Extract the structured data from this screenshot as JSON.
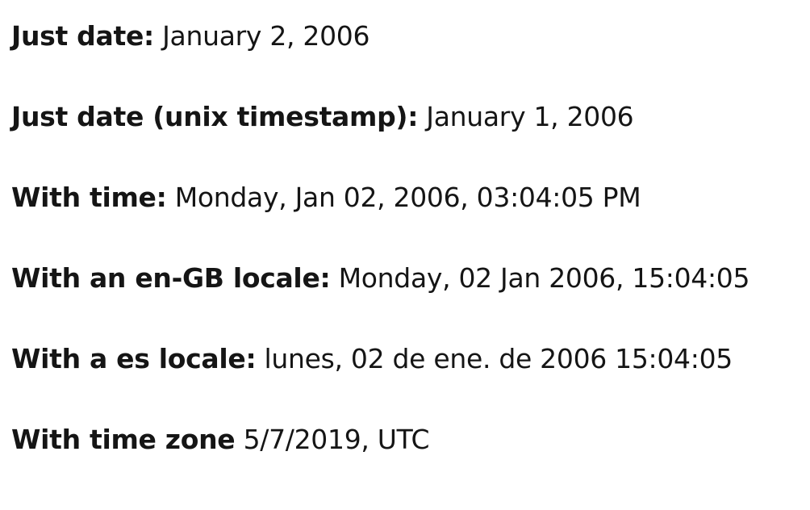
{
  "rows": [
    {
      "label": "Just date:",
      "value": "January 2, 2006"
    },
    {
      "label": "Just date (unix timestamp):",
      "value": "January 1, 2006"
    },
    {
      "label": "With time:",
      "value": "Monday, Jan 02, 2006, 03:04:05 PM"
    },
    {
      "label": "With an en-GB locale:",
      "value": "Monday, 02 Jan 2006, 15:04:05"
    },
    {
      "label": "With a es locale:",
      "value": "lunes, 02 de ene. de 2006 15:04:05"
    },
    {
      "label": "With time zone",
      "value": "5/7/2019, UTC"
    }
  ]
}
